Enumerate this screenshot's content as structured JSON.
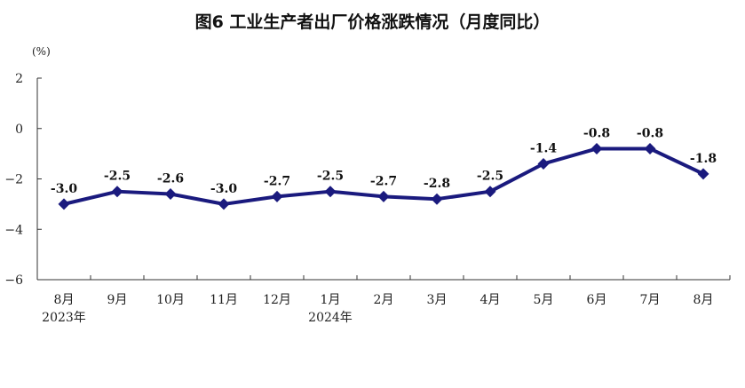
{
  "chart_data": {
    "type": "line",
    "title": "图6   工业生产者出厂价格涨跌情况（月度同比）",
    "unit_label": "(%)",
    "categories": [
      "8月",
      "9月",
      "10月",
      "11月",
      "12月",
      "1月",
      "2月",
      "3月",
      "4月",
      "5月",
      "6月",
      "7月",
      "8月"
    ],
    "year_labels": [
      {
        "index": 0,
        "text": "2023年"
      },
      {
        "index": 5,
        "text": "2024年"
      }
    ],
    "series": [
      {
        "values": [
          -3.0,
          -2.5,
          -2.6,
          -3.0,
          -2.7,
          -2.5,
          -2.7,
          -2.8,
          -2.5,
          -1.4,
          -0.8,
          -0.8,
          -1.8
        ],
        "data_labels": [
          "-3.0",
          "-2.5",
          "-2.6",
          "-3.0",
          "-2.7",
          "-2.5",
          "-2.7",
          "-2.8",
          "-2.5",
          "-1.4",
          "-0.8",
          "-0.8",
          "-1.8"
        ]
      }
    ],
    "y_ticks": [
      2,
      0,
      -2,
      -4,
      -6
    ],
    "y_tick_labels": [
      "2",
      "0",
      "−2",
      "−4",
      "−6"
    ],
    "ylim": [
      -6,
      2
    ],
    "grid": false,
    "line_color": "#1a1a7e",
    "marker": "diamond"
  }
}
